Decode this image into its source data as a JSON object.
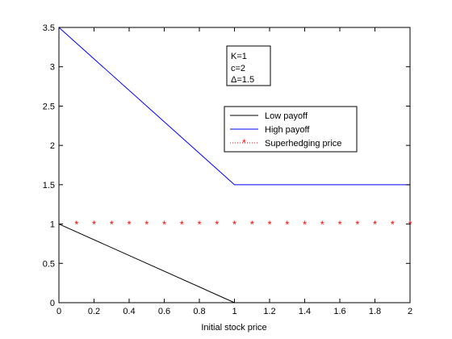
{
  "chart_data": {
    "type": "line",
    "title": "",
    "xlabel": "Initial stock price",
    "ylabel": "",
    "xlim": [
      0,
      2
    ],
    "ylim": [
      0,
      3.5
    ],
    "xticks": [
      0,
      0.2,
      0.4,
      0.6,
      0.8,
      1,
      1.2,
      1.4,
      1.6,
      1.8,
      2
    ],
    "xtick_labels": [
      "0",
      "0.2",
      "0.4",
      "0.6",
      "0.8",
      "1",
      "1.2",
      "1.4",
      "1.6",
      "1.8",
      "2"
    ],
    "yticks": [
      0,
      0.5,
      1,
      1.5,
      2,
      2.5,
      3,
      3.5
    ],
    "ytick_labels": [
      "0",
      "0.5",
      "1",
      "1.5",
      "2",
      "2.5",
      "3",
      "3.5"
    ],
    "grid": false,
    "legend_position": "upper-right",
    "series": [
      {
        "name": "Low payoff",
        "style": "line",
        "color": "#000000",
        "x": [
          0,
          1
        ],
        "y": [
          1,
          0
        ]
      },
      {
        "name": "High payoff",
        "style": "line",
        "color": "#0000ff",
        "x": [
          0,
          1,
          2
        ],
        "y": [
          3.5,
          1.5,
          1.5
        ]
      },
      {
        "name": "Superhedging price",
        "style": "markers",
        "marker": "*",
        "color": "#ff0000",
        "x": [
          0.1,
          0.2,
          0.3,
          0.4,
          0.5,
          0.6,
          0.7,
          0.8,
          0.9,
          1.0,
          1.1,
          1.2,
          1.3,
          1.4,
          1.5,
          1.6,
          1.7,
          1.8,
          1.9,
          2.0
        ],
        "y": [
          1,
          1,
          1,
          1,
          1,
          1,
          1,
          1,
          1,
          1,
          1,
          1,
          1,
          1,
          1,
          1,
          1,
          1,
          1,
          1
        ]
      }
    ],
    "annotation": {
      "lines": [
        "K=1",
        "c=2",
        "Δ=1.5"
      ]
    }
  }
}
